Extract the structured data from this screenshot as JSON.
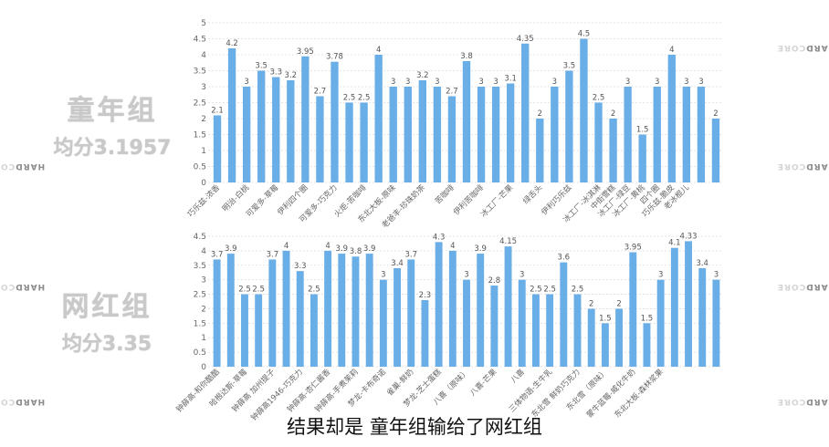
{
  "left_panel": {
    "group1": {
      "title": "童年组",
      "avg": "均分3.1957"
    },
    "group2": {
      "title": "网红组",
      "avg": "均分3.35"
    }
  },
  "watermark": {
    "line1": "HARD",
    "line2": "CORE"
  },
  "subtitle": "结果却是 童年组输给了网红组",
  "colors": {
    "bar": "#6aaee8",
    "grid": "#dddddd",
    "title": "#c9c9c9"
  },
  "chart_data": [
    {
      "type": "bar",
      "ylim": [
        0,
        5
      ],
      "yticks": [
        "0",
        "0.5",
        "1",
        "1.5",
        "2",
        "2.5",
        "3",
        "3.5",
        "4",
        "4.5",
        "5"
      ],
      "grid": true,
      "values": [
        2.1,
        4.2,
        3,
        3.5,
        3.3,
        3.2,
        3.95,
        2.7,
        3.78,
        2.5,
        2.5,
        4,
        3,
        3,
        3.2,
        3,
        2.7,
        3.8,
        3,
        3,
        3.1,
        4.35,
        2,
        3,
        3.5,
        4.5,
        2.5,
        2,
        3,
        1.5,
        3,
        4,
        3,
        3,
        2
      ],
      "data_labels": [
        "2.1",
        "4.2",
        "3",
        "3.5",
        "3.3",
        "3.2",
        "3.95",
        "2.7",
        "3.78",
        "2.5",
        "2.5",
        "4",
        "3",
        "3",
        "3.2",
        "3",
        "2.7",
        "3.8",
        "3",
        "3",
        "3.1",
        "4.35",
        "2",
        "3",
        "3.5",
        "4.5",
        "2.5",
        "2",
        "3",
        "1.5",
        "3",
        "4",
        "3",
        "3",
        "2"
      ],
      "category_labels": [
        "巧乐兹-浓香",
        "明治-白桃",
        "可爱多-草莓",
        "伊利四个圈",
        "可爱多-巧克力",
        "火炬-苦咖啡",
        "东北大板-原味",
        "老爸丰-珍珠奶茶",
        "苦咖啡",
        "伊利苦咖啡",
        "冰工厂-芒果",
        "绿舌头",
        "伊利巧乐兹",
        "冰工厂-冰淇淋",
        "中街雪糕",
        "冰工厂-绿豆",
        "冰工厂-黄桃",
        "四个圈",
        "巧乐兹-脆皮",
        "老冰棍儿"
      ],
      "category_slots": [
        0,
        2,
        4,
        6,
        8,
        10,
        12,
        14,
        16,
        18,
        20,
        22,
        24,
        26,
        27,
        28,
        29,
        30,
        31,
        32
      ]
    },
    {
      "type": "bar",
      "ylim": [
        0,
        4.5
      ],
      "yticks": [
        "0",
        "0.5",
        "1",
        "1.5",
        "2",
        "2.5",
        "3",
        "3.5",
        "4",
        "4.5"
      ],
      "grid": true,
      "values": [
        3.7,
        3.9,
        2.5,
        2.5,
        3.7,
        4,
        3.3,
        2.5,
        4,
        3.9,
        3.8,
        3.9,
        3,
        3.4,
        3.7,
        2.3,
        4.3,
        4,
        3,
        3.9,
        2.8,
        4.15,
        3,
        2.5,
        2.5,
        3.6,
        2.5,
        2,
        1.5,
        2,
        3.95,
        1.5,
        3,
        4.1,
        4.33,
        3.4,
        3
      ],
      "data_labels": [
        "3.7",
        "3.9",
        "2.5",
        "2.5",
        "3.7",
        "4",
        "3.3",
        "2.5",
        "4",
        "3.9",
        "3.8",
        "3.9",
        "3",
        "3.4",
        "3.7",
        "2.3",
        "4.3",
        "4",
        "3",
        "3.9",
        "2.8",
        "4.15",
        "3",
        "2.5",
        "2.5",
        "3.6",
        "2.5",
        "2",
        "1.5",
        "2",
        "3.95",
        "1.5",
        "3",
        "4.1",
        "4.33",
        "3.4",
        "3"
      ],
      "category_labels": [
        "钟薛高-和你酷酷",
        "哈根达斯-草莓",
        "钟薛高 加州提子",
        "钟薛高1946-巧克力",
        "钟薛高-杏仁酱香",
        "钟薛高-手煮茉莉",
        "梦龙-卡布奇诺",
        "雀巢-鲜奶",
        "梦龙-芝士蛋糕",
        "八喜（原味）",
        "八喜-芒果",
        "八喜",
        "三体物语-生牛乳",
        "东北雪 鲜奶巧克力",
        "东北雪（原味）",
        "蒙牛蓝莓-威化牛奶",
        "东北大板-森林浆果"
      ],
      "category_slots": [
        0,
        2,
        4,
        6,
        8,
        10,
        12,
        14,
        16,
        18,
        20,
        22,
        24,
        26,
        28,
        30,
        32
      ]
    }
  ]
}
